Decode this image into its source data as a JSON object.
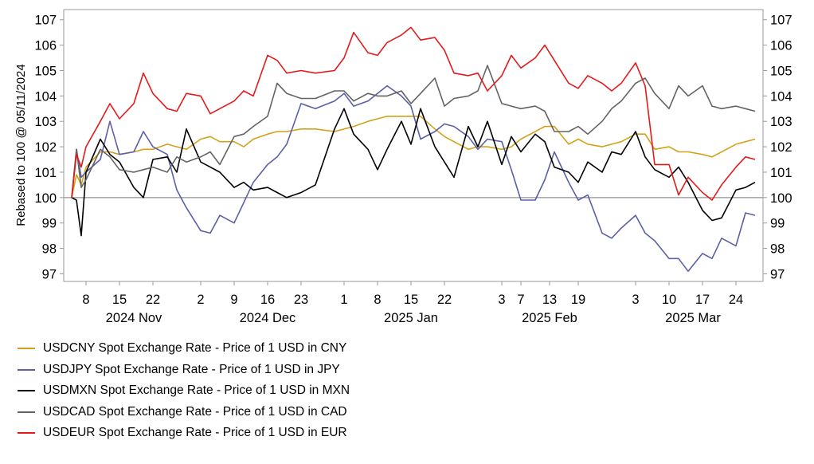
{
  "chart_data": {
    "type": "line",
    "ylabel": "Rebased to 100 @ 05/11/2024",
    "ylim": [
      96.7,
      107.4
    ],
    "yticks": [
      97,
      98,
      99,
      100,
      101,
      102,
      103,
      104,
      105,
      106,
      107
    ],
    "reference_line": 100,
    "x_start": "2024-11-05",
    "x_end": "2025-03-28",
    "x_tick_labels": [
      {
        "date": "2024-11-08",
        "label": "8"
      },
      {
        "date": "2024-11-15",
        "label": "15"
      },
      {
        "date": "2024-11-22",
        "label": "22"
      },
      {
        "date": "2024-12-02",
        "label": "2"
      },
      {
        "date": "2024-12-09",
        "label": "9"
      },
      {
        "date": "2024-12-16",
        "label": "16"
      },
      {
        "date": "2024-12-23",
        "label": "23"
      },
      {
        "date": "2025-01-01",
        "label": "1"
      },
      {
        "date": "2025-01-08",
        "label": "8"
      },
      {
        "date": "2025-01-15",
        "label": "15"
      },
      {
        "date": "2025-01-22",
        "label": "22"
      },
      {
        "date": "2025-02-03",
        "label": "3"
      },
      {
        "date": "2025-02-07",
        "label": "7"
      },
      {
        "date": "2025-02-13",
        "label": "13"
      },
      {
        "date": "2025-02-19",
        "label": "19"
      },
      {
        "date": "2025-03-03",
        "label": "3"
      },
      {
        "date": "2025-03-10",
        "label": "10"
      },
      {
        "date": "2025-03-17",
        "label": "17"
      },
      {
        "date": "2025-03-24",
        "label": "24"
      }
    ],
    "month_labels": [
      {
        "date": "2024-11-18",
        "label": "2024 Nov"
      },
      {
        "date": "2024-12-16",
        "label": "2024 Dec"
      },
      {
        "date": "2025-01-15",
        "label": "2025 Jan"
      },
      {
        "date": "2025-02-13",
        "label": "2025 Feb"
      },
      {
        "date": "2025-03-15",
        "label": "2025 Mar"
      }
    ],
    "x": [
      "2024-11-05",
      "2024-11-06",
      "2024-11-07",
      "2024-11-08",
      "2024-11-11",
      "2024-11-13",
      "2024-11-15",
      "2024-11-18",
      "2024-11-20",
      "2024-11-22",
      "2024-11-25",
      "2024-11-27",
      "2024-11-29",
      "2024-12-02",
      "2024-12-04",
      "2024-12-06",
      "2024-12-09",
      "2024-12-11",
      "2024-12-13",
      "2024-12-16",
      "2024-12-18",
      "2024-12-20",
      "2024-12-23",
      "2024-12-26",
      "2024-12-30",
      "2025-01-01",
      "2025-01-03",
      "2025-01-06",
      "2025-01-08",
      "2025-01-10",
      "2025-01-13",
      "2025-01-15",
      "2025-01-17",
      "2025-01-20",
      "2025-01-22",
      "2025-01-24",
      "2025-01-27",
      "2025-01-29",
      "2025-01-31",
      "2025-02-03",
      "2025-02-05",
      "2025-02-07",
      "2025-02-10",
      "2025-02-12",
      "2025-02-14",
      "2025-02-17",
      "2025-02-19",
      "2025-02-21",
      "2025-02-24",
      "2025-02-26",
      "2025-02-28",
      "2025-03-03",
      "2025-03-05",
      "2025-03-07",
      "2025-03-10",
      "2025-03-12",
      "2025-03-14",
      "2025-03-17",
      "2025-03-19",
      "2025-03-21",
      "2025-03-24",
      "2025-03-26",
      "2025-03-28"
    ],
    "series": [
      {
        "name": "USDCNY Spot Exchange Rate - Price of 1 USD in CNY",
        "color": "#d4a21a",
        "values": [
          100,
          100.9,
          100.5,
          101.2,
          101.8,
          101.8,
          101.7,
          101.8,
          101.9,
          101.9,
          102.1,
          102.0,
          101.9,
          102.3,
          102.4,
          102.2,
          102.2,
          102.0,
          102.3,
          102.5,
          102.6,
          102.6,
          102.7,
          102.7,
          102.6,
          102.7,
          102.8,
          103.0,
          103.1,
          103.2,
          103.2,
          103.2,
          103.2,
          102.7,
          102.4,
          102.2,
          101.9,
          102.0,
          102.0,
          101.9,
          102.0,
          102.3,
          102.6,
          102.8,
          102.8,
          102.1,
          102.3,
          102.1,
          102.0,
          102.1,
          102.2,
          102.5,
          102.5,
          101.9,
          102.0,
          101.8,
          101.8,
          101.7,
          101.6,
          101.8,
          102.1,
          102.2,
          102.3
        ]
      },
      {
        "name": "USDJPY Spot Exchange Rate - Price of 1 USD in JPY",
        "color": "#5b5fa6",
        "values": [
          100,
          101.9,
          100.8,
          101.0,
          101.5,
          103.0,
          101.7,
          101.8,
          102.6,
          102.0,
          101.7,
          100.3,
          99.6,
          98.7,
          98.6,
          99.3,
          99.0,
          99.8,
          100.6,
          101.3,
          101.6,
          102.1,
          103.7,
          103.5,
          103.8,
          104.1,
          103.6,
          103.8,
          104.1,
          104.4,
          104.0,
          103.6,
          102.3,
          102.6,
          102.9,
          102.8,
          102.4,
          101.9,
          102.3,
          102.2,
          101.1,
          99.9,
          99.9,
          100.7,
          101.8,
          100.6,
          99.9,
          100.1,
          98.6,
          98.4,
          98.8,
          99.3,
          98.6,
          98.3,
          97.6,
          97.6,
          97.1,
          97.8,
          97.6,
          98.4,
          98.1,
          99.4,
          99.3
        ]
      },
      {
        "name": "USDMXN Spot Exchange Rate - Price of 1 USD in MXN",
        "color": "#000000",
        "values": [
          100,
          99.9,
          98.5,
          101.0,
          102.3,
          101.7,
          101.4,
          100.4,
          100.0,
          101.5,
          101.6,
          101.0,
          102.7,
          101.4,
          101.2,
          101.0,
          100.4,
          100.6,
          100.3,
          100.4,
          100.2,
          100.0,
          100.2,
          100.5,
          102.7,
          103.5,
          102.5,
          101.9,
          101.1,
          101.9,
          103.0,
          102.1,
          103.5,
          102.0,
          101.4,
          100.8,
          102.8,
          102.0,
          103.0,
          101.3,
          102.4,
          101.8,
          102.5,
          102.2,
          101.2,
          101.0,
          100.6,
          101.4,
          101.0,
          101.8,
          101.7,
          102.6,
          101.6,
          101.1,
          100.8,
          101.2,
          100.6,
          99.5,
          99.1,
          99.2,
          100.3,
          100.4,
          100.6
        ]
      },
      {
        "name": "USDCAD Spot Exchange Rate - Price of 1 USD in CAD",
        "color": "#636363",
        "values": [
          100,
          101.9,
          100.4,
          100.7,
          101.9,
          101.6,
          101.1,
          101.0,
          101.1,
          101.2,
          101.0,
          101.6,
          101.4,
          101.6,
          101.8,
          101.3,
          102.4,
          102.5,
          102.8,
          103.2,
          104.5,
          104.1,
          103.9,
          103.9,
          104.2,
          104.2,
          103.8,
          104.1,
          104.0,
          104.0,
          104.2,
          103.7,
          104.1,
          104.7,
          103.6,
          103.9,
          104.0,
          104.2,
          105.2,
          103.7,
          103.6,
          103.5,
          103.6,
          103.4,
          102.6,
          102.6,
          102.8,
          102.5,
          103.0,
          103.5,
          103.8,
          104.5,
          104.7,
          104.1,
          103.5,
          104.4,
          104.0,
          104.4,
          103.6,
          103.5,
          103.6,
          103.5,
          103.4
        ]
      },
      {
        "name": "USDEUR Spot Exchange Rate - Price of 1 USD in EUR",
        "color": "#e31a1c",
        "values": [
          100,
          101.7,
          101.2,
          102.0,
          103.0,
          103.7,
          103.1,
          103.7,
          104.9,
          104.1,
          103.5,
          103.4,
          104.1,
          104.0,
          103.3,
          103.5,
          103.8,
          104.2,
          104.0,
          105.6,
          105.4,
          104.9,
          105.0,
          104.9,
          105.0,
          105.5,
          106.5,
          105.7,
          105.6,
          106.1,
          106.4,
          106.7,
          106.2,
          106.3,
          105.8,
          104.9,
          104.8,
          104.9,
          104.2,
          104.8,
          105.6,
          105.1,
          105.5,
          106.0,
          105.4,
          104.5,
          104.3,
          104.8,
          104.5,
          104.2,
          104.5,
          105.3,
          104.4,
          101.3,
          101.3,
          100.1,
          100.8,
          100.2,
          99.9,
          100.5,
          101.2,
          101.6,
          101.5
        ]
      }
    ]
  }
}
